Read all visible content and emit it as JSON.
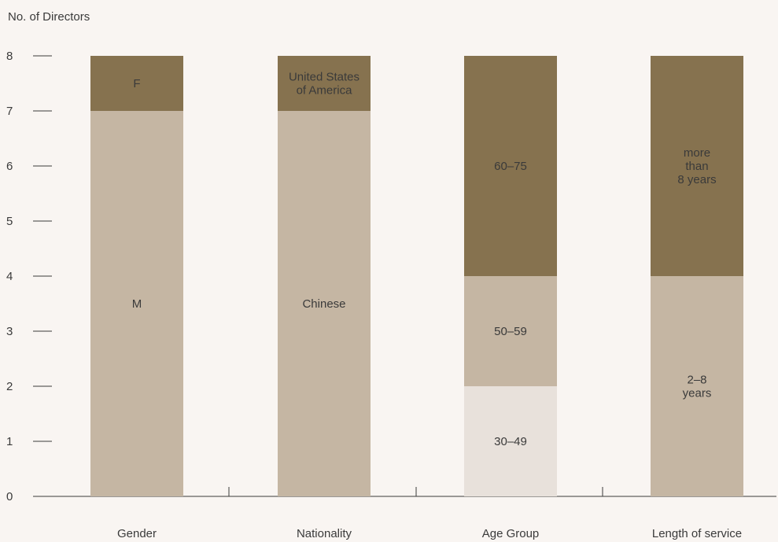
{
  "chart_data": {
    "type": "bar",
    "stacked": true,
    "ylabel": "No. of Directors",
    "xlabel": "",
    "ylim": [
      0,
      8
    ],
    "yticks": [
      "0",
      "1",
      "2",
      "3",
      "4",
      "5",
      "6",
      "7",
      "8"
    ],
    "grid": false,
    "colors": {
      "light": "#e8e1db",
      "medium": "#c5b6a3",
      "dark": "#86724f",
      "axis": "#3a3a3a"
    },
    "bars": [
      {
        "category": "Gender",
        "segments": [
          {
            "label": "M",
            "value": 7,
            "color": "medium"
          },
          {
            "label": "F",
            "value": 1,
            "color": "dark"
          }
        ]
      },
      {
        "category": "Nationality",
        "segments": [
          {
            "label": "Chinese",
            "value": 7,
            "color": "medium"
          },
          {
            "label": "United States of America",
            "value": 1,
            "color": "dark"
          }
        ]
      },
      {
        "category": "Age Group",
        "segments": [
          {
            "label": "30–49",
            "value": 2,
            "color": "light"
          },
          {
            "label": "50–59",
            "value": 2,
            "color": "medium"
          },
          {
            "label": "60–75",
            "value": 4,
            "color": "dark"
          }
        ]
      },
      {
        "category": "Length of service",
        "segments": [
          {
            "label": "2–8 years",
            "value": 4,
            "color": "medium"
          },
          {
            "label": "more than 8 years",
            "value": 4,
            "color": "dark"
          }
        ]
      }
    ]
  }
}
